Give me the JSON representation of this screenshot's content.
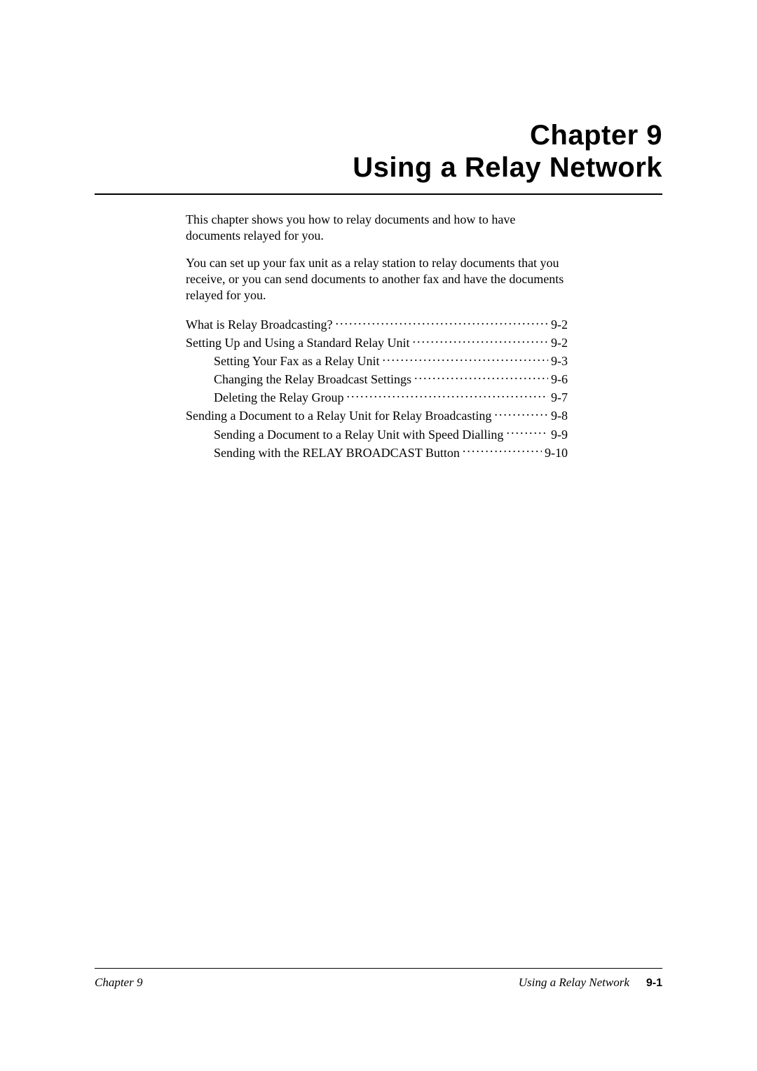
{
  "heading": {
    "chapter": "Chapter 9",
    "title": "Using a Relay Network"
  },
  "paragraphs": [
    "This chapter shows you how to relay documents and how to have documents relayed for you.",
    "You can set up your fax unit as a relay station to relay documents that you receive, or you can send documents to another fax and have the documents relayed for you."
  ],
  "toc": [
    {
      "level": 0,
      "label": "What is Relay Broadcasting? ",
      "page": " 9-2"
    },
    {
      "level": 0,
      "label": "Setting Up and Using a Standard Relay Unit ",
      "page": " 9-2"
    },
    {
      "level": 1,
      "label": "Setting Your Fax as a Relay Unit ",
      "page": " 9-3"
    },
    {
      "level": 1,
      "label": "Changing the Relay Broadcast Settings ",
      "page": " 9-6"
    },
    {
      "level": 1,
      "label": "Deleting the Relay Group ",
      "page": " 9-7"
    },
    {
      "level": 0,
      "label": "Sending a Document to a Relay Unit for Relay Broadcasting ",
      "page": " 9-8"
    },
    {
      "level": 1,
      "label": "Sending a Document to a Relay Unit with Speed Dialling ",
      "page": " 9-9"
    },
    {
      "level": 1,
      "label": "Sending with the RELAY BROADCAST Button ",
      "page": " 9-10"
    }
  ],
  "footer": {
    "left": "Chapter 9",
    "title": "Using a Relay Network",
    "pagenum": "9-1"
  },
  "colors": {
    "text": "#000000",
    "background": "#ffffff"
  },
  "typography": {
    "body_family": "Times New Roman",
    "heading_family": "Arial",
    "heading_size_pt": 40,
    "body_size_pt": 18,
    "footer_size_pt": 17
  }
}
